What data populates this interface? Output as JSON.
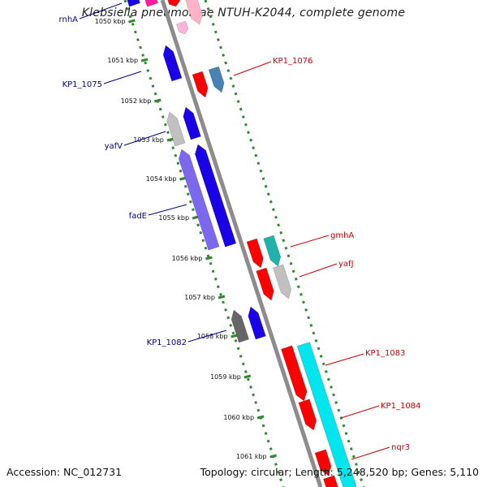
{
  "header": {
    "title": "Klebsiella pneumoniae NTUH-K2044, complete genome"
  },
  "footer": {
    "accession": "Accession: NC_012731",
    "summary": "Topology: circular; Length: 5,248,520 bp; Genes: 5,110"
  },
  "colors": {
    "backbone": "#8c8c8c",
    "ticks": "#2e8b2e",
    "minus_label": "#00008b",
    "plus_label": "#cc0000"
  },
  "kbp_ticks": [
    {
      "label": "1050 kbp"
    },
    {
      "label": "1051 kbp"
    },
    {
      "label": "1052 kbp"
    },
    {
      "label": "1053 kbp"
    },
    {
      "label": "1054 kbp"
    },
    {
      "label": "1055 kbp"
    },
    {
      "label": "1056 kbp"
    },
    {
      "label": "1057 kbp"
    },
    {
      "label": "1058 kbp"
    },
    {
      "label": "1059 kbp"
    },
    {
      "label": "1060 kbp"
    },
    {
      "label": "1061 kbp"
    }
  ],
  "genes": [
    {
      "name": "rnhA",
      "strand": "minus",
      "color": "#1a00e6",
      "lane": "outer",
      "labeled": true
    },
    {
      "name": "KP1_1075",
      "strand": "minus",
      "color": "#1a00e6",
      "lane": "outer",
      "labeled": true
    },
    {
      "name": "yafV",
      "strand": "minus",
      "color": "#1a00e6",
      "lane": "outer",
      "labeled": true
    },
    {
      "name": "fadE",
      "strand": "minus",
      "color": "#7b68ee",
      "lane": "outer",
      "labeled": true
    },
    {
      "name": "KP1_1082",
      "strand": "minus",
      "color": "#1a00e6",
      "lane": "outer",
      "labeled": true
    },
    {
      "name": "KP1_1076",
      "strand": "plus",
      "color": "#ff0000",
      "lane": "inner",
      "labeled": true
    },
    {
      "name": "gmhA",
      "strand": "plus",
      "color": "#ff0000",
      "lane": "inner",
      "labeled": true
    },
    {
      "name": "yafJ",
      "strand": "plus",
      "color": "#ff0000",
      "lane": "inner",
      "labeled": true
    },
    {
      "name": "KP1_1083",
      "strand": "plus",
      "color": "#ff0000",
      "lane": "inner",
      "labeled": true
    },
    {
      "name": "KP1_1084",
      "strand": "plus",
      "color": "#ff0000",
      "lane": "inner",
      "labeled": true
    },
    {
      "name": "nqr3",
      "strand": "plus",
      "color": "#ff0000",
      "lane": "inner",
      "labeled": true
    }
  ]
}
